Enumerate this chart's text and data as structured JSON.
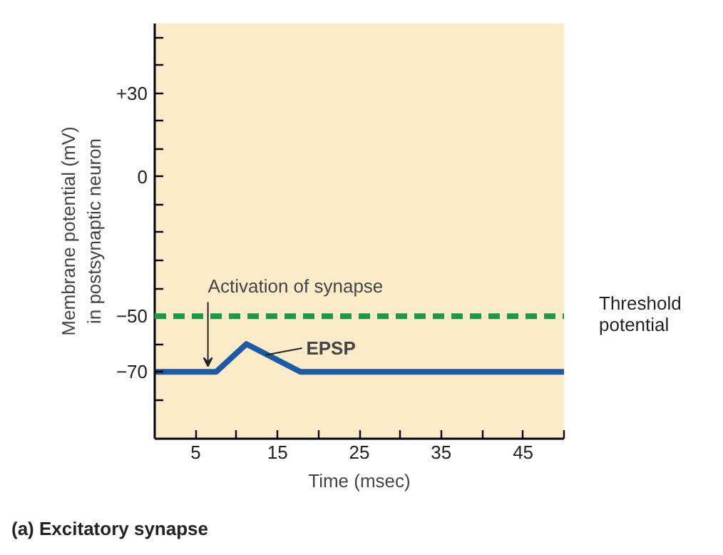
{
  "chart_data": {
    "type": "line",
    "title": "(a)  Excitatory synapse",
    "xlabel": "Time (msec)",
    "ylabel": "Membrane potential (mV)\nin postsynaptic neuron",
    "x": [
      0,
      7.5,
      11.2,
      17.8,
      50
    ],
    "series": [
      {
        "color": "#1c5aa6",
        "values": [
          -70,
          -70,
          -60,
          -70,
          -70
        ]
      }
    ],
    "xlim": [
      0,
      50
    ],
    "xticks": [
      5,
      {
        "value": 10,
        "label": null
      },
      15,
      {
        "value": 20,
        "label": null
      },
      25,
      {
        "value": 30,
        "label": null
      },
      35,
      {
        "value": 40,
        "label": null
      },
      45,
      {
        "value": 50,
        "label": null
      }
    ],
    "ylim": [
      -94,
      55
    ],
    "yticks": [
      {
        "value": -80,
        "label": null
      },
      {
        "value": -70,
        "label": "−70"
      },
      {
        "value": -60,
        "label": null
      },
      {
        "value": -50,
        "label": "−50"
      },
      {
        "value": -40,
        "label": null
      },
      {
        "value": -30,
        "label": null
      },
      {
        "value": -20,
        "label": null
      },
      {
        "value": -10,
        "label": null
      },
      0,
      {
        "value": 10,
        "label": null
      },
      {
        "value": 20,
        "label": null
      },
      {
        "value": 30,
        "label": "+30"
      },
      {
        "value": 40,
        "label": null
      },
      {
        "value": 50,
        "label": null
      }
    ],
    "ref_lines": [
      {
        "axis": "y",
        "value": -50,
        "label": "Threshold\npotential",
        "color": "#1a9a48",
        "line_style": "dashed"
      }
    ],
    "annotations": [
      {
        "text": "Activation of synapse",
        "x": 6.5,
        "y": -70
      },
      {
        "text": "EPSP",
        "x": 13.5,
        "y": -64
      }
    ],
    "grid": false,
    "marker": "none",
    "line_style": "solid"
  }
}
